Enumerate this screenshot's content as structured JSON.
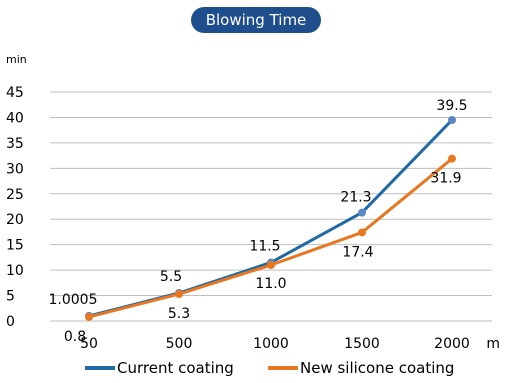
{
  "chart_data": {
    "type": "line",
    "title": "Blowing Time",
    "ylabel": "min",
    "xlabel": "m",
    "categories": [
      "50",
      "500",
      "1000",
      "1500",
      "2000"
    ],
    "ylim": [
      0,
      45
    ],
    "yticks": [
      "0",
      "5",
      "10",
      "15",
      "20",
      "25",
      "30",
      "35",
      "40",
      "45"
    ],
    "grid": true,
    "legend_position": "bottom",
    "series": [
      {
        "name": "Current coating",
        "values": [
          1.0005,
          5.5,
          11.5,
          21.3,
          39.5
        ],
        "labels": [
          "1.0005",
          "5.5",
          "11.5",
          "21.3",
          "39.5"
        ],
        "color": "#1f6aa5",
        "marker_color": "#5b87c5"
      },
      {
        "name": "New silicone coating",
        "values": [
          0.8,
          5.3,
          11.0,
          17.4,
          31.9
        ],
        "labels": [
          "0.8",
          "5.3",
          "11.0",
          "17.4",
          "31.9"
        ],
        "color": "#e87722",
        "marker_color": "#e87722"
      }
    ]
  }
}
